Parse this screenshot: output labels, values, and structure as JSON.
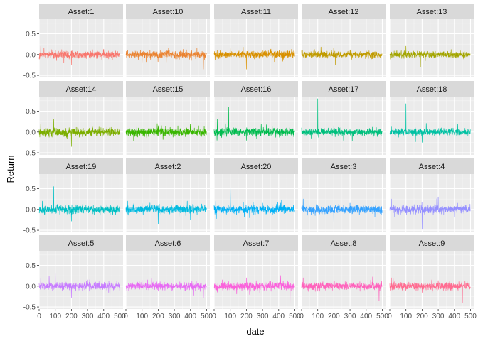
{
  "chart_data": {
    "type": "line",
    "title": "",
    "xlabel": "date",
    "ylabel": "Return",
    "xlim": [
      0,
      520
    ],
    "ylim": [
      -0.55,
      0.85
    ],
    "x_ticks": [
      0,
      100,
      200,
      300,
      400,
      500
    ],
    "x_tick_labels": [
      "0",
      "100",
      "200",
      "300",
      "400",
      "500"
    ],
    "y_ticks": [
      -0.5,
      0.0,
      0.5
    ],
    "y_tick_labels": [
      "-0.5",
      "0.0",
      "0.5"
    ],
    "grid": true,
    "legend": "none",
    "facet_layout": {
      "rows": 4,
      "cols": 5
    },
    "series": [
      {
        "name": "Asset:1",
        "color": "#F8766D",
        "n": 500,
        "base_sd": 0.045,
        "spikes": [
          [
            10,
            0.2
          ],
          [
            30,
            0.15
          ],
          [
            200,
            -0.24
          ]
        ]
      },
      {
        "name": "Asset:10",
        "color": "#EA8331",
        "n": 500,
        "base_sd": 0.045,
        "spikes": [
          [
            100,
            -0.2
          ],
          [
            250,
            -0.18
          ],
          [
            440,
            0.15
          ],
          [
            480,
            -0.35
          ]
        ]
      },
      {
        "name": "Asset:11",
        "color": "#D89000",
        "n": 500,
        "base_sd": 0.045,
        "spikes": [
          [
            100,
            0.15
          ],
          [
            180,
            0.18
          ],
          [
            200,
            -0.35
          ],
          [
            350,
            0.12
          ]
        ]
      },
      {
        "name": "Asset:12",
        "color": "#C09B00",
        "n": 500,
        "base_sd": 0.04,
        "spikes": [
          [
            80,
            0.12
          ],
          [
            120,
            0.18
          ],
          [
            210,
            -0.25
          ],
          [
            400,
            0.1
          ]
        ]
      },
      {
        "name": "Asset:13",
        "color": "#A3A500",
        "n": 500,
        "base_sd": 0.04,
        "spikes": [
          [
            100,
            0.2
          ],
          [
            190,
            -0.3
          ],
          [
            380,
            0.12
          ]
        ]
      },
      {
        "name": "Asset:14",
        "color": "#7CAE00",
        "n": 500,
        "base_sd": 0.05,
        "spikes": [
          [
            10,
            0.2
          ],
          [
            90,
            0.3
          ],
          [
            200,
            -0.35
          ],
          [
            420,
            0.12
          ]
        ]
      },
      {
        "name": "Asset:15",
        "color": "#39B600",
        "n": 500,
        "base_sd": 0.05,
        "spikes": [
          [
            100,
            0.1
          ],
          [
            200,
            0.15
          ],
          [
            230,
            -0.18
          ],
          [
            450,
            0.15
          ]
        ]
      },
      {
        "name": "Asset:16",
        "color": "#00BB4E",
        "n": 500,
        "base_sd": 0.05,
        "spikes": [
          [
            20,
            0.3
          ],
          [
            70,
            0.2
          ],
          [
            90,
            0.6
          ],
          [
            200,
            -0.2
          ],
          [
            360,
            0.15
          ]
        ]
      },
      {
        "name": "Asset:17",
        "color": "#00BF7D",
        "n": 500,
        "base_sd": 0.045,
        "spikes": [
          [
            60,
            -0.15
          ],
          [
            100,
            0.8
          ],
          [
            200,
            0.2
          ],
          [
            260,
            -0.2
          ]
        ]
      },
      {
        "name": "Asset:18",
        "color": "#00C1A3",
        "n": 500,
        "base_sd": 0.045,
        "spikes": [
          [
            20,
            -0.1
          ],
          [
            100,
            0.68
          ],
          [
            200,
            -0.25
          ],
          [
            320,
            0.1
          ]
        ]
      },
      {
        "name": "Asset:19",
        "color": "#00BFC4",
        "n": 500,
        "base_sd": 0.05,
        "spikes": [
          [
            20,
            0.2
          ],
          [
            90,
            0.55
          ],
          [
            200,
            -0.28
          ],
          [
            420,
            0.12
          ]
        ]
      },
      {
        "name": "Asset:2",
        "color": "#00BAE0",
        "n": 500,
        "base_sd": 0.05,
        "spikes": [
          [
            10,
            0.2
          ],
          [
            100,
            0.15
          ],
          [
            200,
            -0.35
          ],
          [
            380,
            0.2
          ],
          [
            400,
            -0.25
          ]
        ]
      },
      {
        "name": "Asset:20",
        "color": "#00B0F6",
        "n": 500,
        "base_sd": 0.05,
        "spikes": [
          [
            10,
            0.2
          ],
          [
            100,
            0.5
          ],
          [
            220,
            -0.2
          ],
          [
            300,
            0.15
          ]
        ]
      },
      {
        "name": "Asset:3",
        "color": "#35A2FF",
        "n": 500,
        "base_sd": 0.05,
        "spikes": [
          [
            10,
            0.25
          ],
          [
            60,
            -0.12
          ],
          [
            200,
            -0.35
          ],
          [
            300,
            0.15
          ]
        ]
      },
      {
        "name": "Asset:4",
        "color": "#9590FF",
        "n": 500,
        "base_sd": 0.05,
        "spikes": [
          [
            10,
            0.25
          ],
          [
            200,
            -0.48
          ],
          [
            300,
            0.3
          ],
          [
            420,
            0.15
          ]
        ]
      },
      {
        "name": "Asset:5",
        "color": "#C77CFF",
        "n": 500,
        "base_sd": 0.05,
        "spikes": [
          [
            10,
            0.2
          ],
          [
            100,
            0.32
          ],
          [
            200,
            -0.28
          ],
          [
            300,
            0.15
          ]
        ]
      },
      {
        "name": "Asset:6",
        "color": "#E76BF3",
        "n": 500,
        "base_sd": 0.045,
        "spikes": [
          [
            20,
            0.1
          ],
          [
            100,
            0.15
          ],
          [
            200,
            -0.12
          ],
          [
            480,
            -0.28
          ]
        ]
      },
      {
        "name": "Asset:7",
        "color": "#FA62DB",
        "n": 500,
        "base_sd": 0.05,
        "spikes": [
          [
            50,
            0.15
          ],
          [
            200,
            0.2
          ],
          [
            220,
            -0.2
          ],
          [
            470,
            -0.45
          ]
        ]
      },
      {
        "name": "Asset:8",
        "color": "#FF62BC",
        "n": 500,
        "base_sd": 0.045,
        "spikes": [
          [
            10,
            0.2
          ],
          [
            100,
            -0.12
          ],
          [
            200,
            0.15
          ],
          [
            440,
            0.22
          ],
          [
            480,
            -0.35
          ]
        ]
      },
      {
        "name": "Asset:9",
        "color": "#FF6C91",
        "n": 500,
        "base_sd": 0.045,
        "spikes": [
          [
            10,
            0.2
          ],
          [
            200,
            -0.15
          ],
          [
            260,
            0.15
          ],
          [
            450,
            -0.4
          ]
        ]
      }
    ]
  }
}
